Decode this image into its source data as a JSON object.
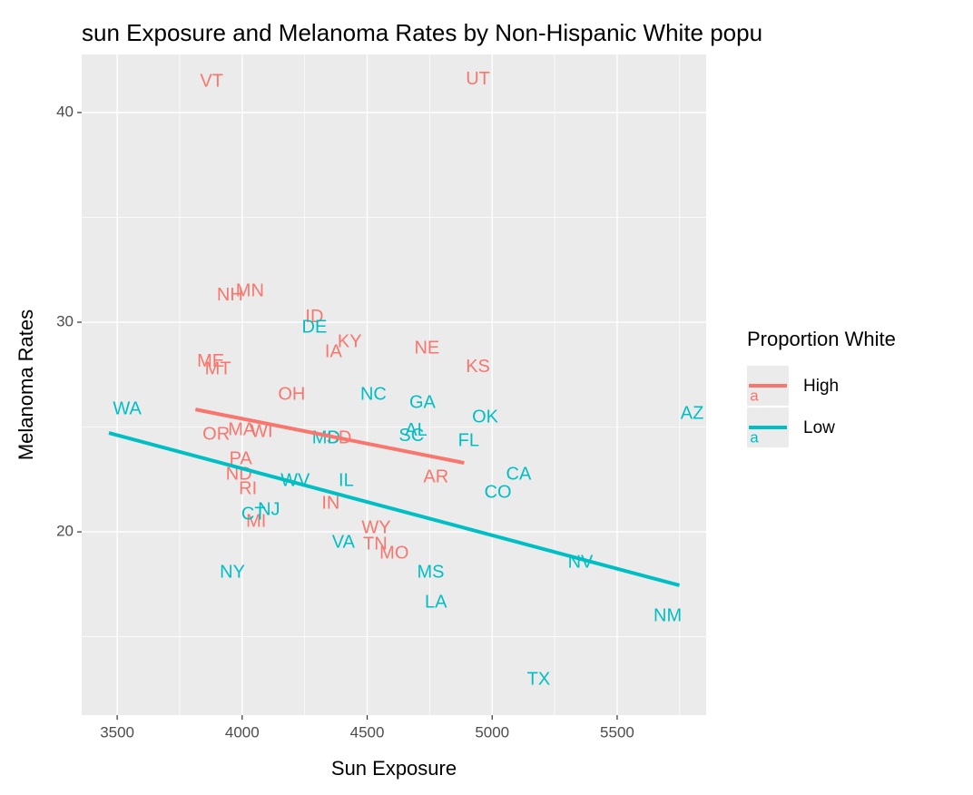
{
  "chart_data": {
    "type": "scatter",
    "title": "sun Exposure and Melanoma Rates by Non-Hispanic White popu",
    "x_label": "Sun Exposure",
    "y_label": "Melanoma Rates",
    "legend_title": "Proportion White",
    "xlim": [
      3358,
      5856
    ],
    "ylim": [
      11.26,
      42.77
    ],
    "xticks": [
      3500,
      4000,
      4500,
      5000,
      5500
    ],
    "yticks": [
      20,
      30,
      40
    ],
    "x_minor_ticks": [
      3750,
      4250,
      4750,
      5250,
      5750
    ],
    "y_minor_ticks": [
      15,
      25,
      35
    ],
    "grid": true,
    "series": [
      {
        "name": "High",
        "color": "#F8766D",
        "labels": [
          "VT",
          "UT",
          "NH",
          "MN",
          "ID",
          "KY",
          "IA",
          "NE",
          "KS",
          "ME",
          "MT",
          "OH",
          "OR",
          "MA",
          "WI",
          "SD",
          "PA",
          "ND",
          "RI",
          "AR",
          "IN",
          "WY",
          "TN",
          "MO",
          "MI"
        ],
        "x": [
          3878,
          4943,
          3951,
          4031,
          4289,
          4430,
          4365,
          4739,
          4943,
          3874,
          3903,
          4198,
          3896,
          3998,
          4078,
          4387,
          3994,
          3987,
          4023,
          4775,
          4354,
          4536,
          4532,
          4608,
          4056
        ],
        "values": [
          41.47,
          41.56,
          31.26,
          31.47,
          30.22,
          29.05,
          28.57,
          28.74,
          27.84,
          28.1,
          27.75,
          26.54,
          24.63,
          24.85,
          24.76,
          24.46,
          23.46,
          22.73,
          22.03,
          22.6,
          21.34,
          20.17,
          19.39,
          18.96,
          20.48
        ],
        "fit": {
          "x": [
            3813,
            4888
          ],
          "y": [
            25.84,
            23.29
          ]
        }
      },
      {
        "name": "Low",
        "color": "#00BFC4",
        "labels": [
          "WA",
          "AZ",
          "DE",
          "NC",
          "GA",
          "OK",
          "AL",
          "SC",
          "FL",
          "MD",
          "CA",
          "CO",
          "IL",
          "WV",
          "NJ",
          "CT",
          "NY",
          "VA",
          "MS",
          "LA",
          "NV",
          "NM",
          "TX"
        ],
        "x": [
          3540,
          5800,
          4289,
          4525,
          4721,
          4972,
          4696,
          4677,
          4906,
          4336,
          5106,
          5023,
          4416,
          4212,
          4107,
          4045,
          3961,
          4405,
          4754,
          4775,
          5353,
          5702,
          5186
        ],
        "values": [
          25.84,
          25.63,
          29.74,
          26.54,
          26.15,
          25.45,
          24.81,
          24.55,
          24.33,
          24.46,
          22.73,
          21.86,
          22.42,
          22.42,
          21.04,
          20.82,
          18.05,
          19.48,
          18.05,
          16.62,
          18.53,
          15.97,
          12.94
        ],
        "fit": {
          "x": [
            3467,
            5749
          ],
          "y": [
            24.72,
            17.45
          ]
        }
      }
    ]
  }
}
